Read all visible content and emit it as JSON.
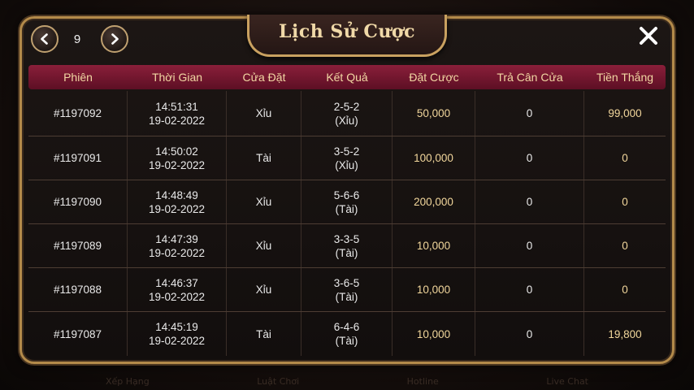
{
  "title": "Lịch Sử Cược",
  "pager": {
    "page": "9"
  },
  "columns": [
    "Phiên",
    "Thời Gian",
    "Cửa Đặt",
    "Kết Quả",
    "Đặt Cược",
    "Trả Cân Cửa",
    "Tiền Thắng"
  ],
  "rows": [
    {
      "session": "#1197092",
      "time": "14:51:31",
      "date": "19-02-2022",
      "side": "Xỉu",
      "dice": "2-5-2",
      "result": "(Xỉu)",
      "bet": "50,000",
      "refund": "0",
      "win": "99,000"
    },
    {
      "session": "#1197091",
      "time": "14:50:02",
      "date": "19-02-2022",
      "side": "Tài",
      "dice": "3-5-2",
      "result": "(Xỉu)",
      "bet": "100,000",
      "refund": "0",
      "win": "0"
    },
    {
      "session": "#1197090",
      "time": "14:48:49",
      "date": "19-02-2022",
      "side": "Xỉu",
      "dice": "5-6-6",
      "result": "(Tài)",
      "bet": "200,000",
      "refund": "0",
      "win": "0"
    },
    {
      "session": "#1197089",
      "time": "14:47:39",
      "date": "19-02-2022",
      "side": "Xỉu",
      "dice": "3-3-5",
      "result": "(Tài)",
      "bet": "10,000",
      "refund": "0",
      "win": "0"
    },
    {
      "session": "#1197088",
      "time": "14:46:37",
      "date": "19-02-2022",
      "side": "Xỉu",
      "dice": "3-6-5",
      "result": "(Tài)",
      "bet": "10,000",
      "refund": "0",
      "win": "0"
    },
    {
      "session": "#1197087",
      "time": "14:45:19",
      "date": "19-02-2022",
      "side": "Tài",
      "dice": "6-4-6",
      "result": "(Tài)",
      "bet": "10,000",
      "refund": "0",
      "win": "19,800"
    }
  ],
  "background_menu": [
    "Xếp Hạng",
    "Luật Chơi",
    "Hotline",
    "Live Chat"
  ],
  "colors": {
    "gold_border": "#b38a4a",
    "header_bg": "#7a1832",
    "header_text": "#f2d7a3",
    "money_text": "#f2d79c"
  },
  "icons": {
    "prev": "chevron-left-icon",
    "next": "chevron-right-icon",
    "close": "close-icon"
  }
}
